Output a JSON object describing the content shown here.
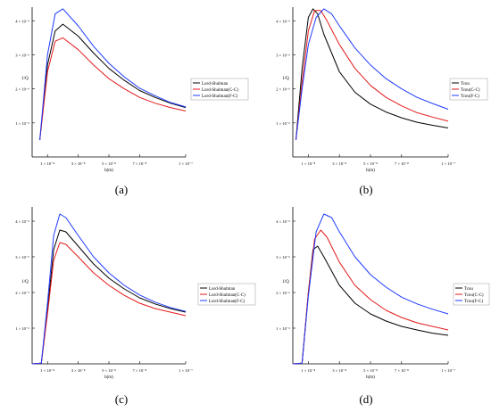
{
  "chart_data": [
    {
      "type": "line",
      "panel_label": "(a)",
      "ylabel": "1/Q",
      "xlabel": "h(m)",
      "x_tick_labels": [
        "1 × 10⁻⁸",
        "3 × 10⁻⁸",
        "5 × 10⁻⁸",
        "7 × 10⁻⁸",
        "1 × 10⁻⁷"
      ],
      "x_ticks": [
        1e-08,
        3e-08,
        5e-08,
        7e-08,
        1e-07
      ],
      "y_tick_labels": [
        "1 × 10⁻⁶",
        "2 × 10⁻⁶",
        "3 × 10⁻⁶",
        "4 × 10⁻⁶"
      ],
      "y_ticks": [
        1e-06,
        2e-06,
        3e-06,
        4e-06
      ],
      "xlim": [
        0,
        1e-07
      ],
      "ylim": [
        0,
        4.4e-06
      ],
      "grid": false,
      "legend_position": "right",
      "series": [
        {
          "name": "Lord-Shulman",
          "color": "#000000",
          "x": [
            5e-09,
            1e-08,
            1.5e-08,
            2e-08,
            3e-08,
            4e-08,
            5e-08,
            6e-08,
            7e-08,
            8e-08,
            9e-08,
            1e-07
          ],
          "y": [
            5e-07,
            2.7e-06,
            3.7e-06,
            3.9e-06,
            3.55e-06,
            3.05e-06,
            2.6e-06,
            2.25e-06,
            1.95e-06,
            1.75e-06,
            1.58e-06,
            1.45e-06
          ]
        },
        {
          "name": "Lord-Shulman(C-C)",
          "color": "#e31a1c",
          "x": [
            5e-09,
            1e-08,
            1.5e-08,
            2e-08,
            3e-08,
            4e-08,
            5e-08,
            6e-08,
            7e-08,
            8e-08,
            9e-08,
            1e-07
          ],
          "y": [
            5e-07,
            2.5e-06,
            3.4e-06,
            3.5e-06,
            3.15e-06,
            2.7e-06,
            2.3e-06,
            2e-06,
            1.75e-06,
            1.58e-06,
            1.45e-06,
            1.35e-06
          ]
        },
        {
          "name": "Lord-Shulman(F-C)",
          "color": "#1f3bff",
          "x": [
            5e-09,
            1e-08,
            1.5e-08,
            2e-08,
            3e-08,
            4e-08,
            5e-08,
            6e-08,
            7e-08,
            8e-08,
            9e-08,
            1e-07
          ],
          "y": [
            5e-07,
            3e-06,
            4.2e-06,
            4.35e-06,
            3.85e-06,
            3.25e-06,
            2.75e-06,
            2.35e-06,
            2.02e-06,
            1.8e-06,
            1.6e-06,
            1.47e-06
          ]
        }
      ]
    },
    {
      "type": "line",
      "panel_label": "(b)",
      "ylabel": "1/Q",
      "xlabel": "h(m)",
      "x_tick_labels": [
        "1 × 10⁻⁸",
        "3 × 10⁻⁸",
        "5 × 10⁻⁸",
        "7 × 10⁻⁸",
        "1 × 10⁻⁷"
      ],
      "x_ticks": [
        1e-08,
        3e-08,
        5e-08,
        7e-08,
        1e-07
      ],
      "y_tick_labels": [
        "1 × 10⁻⁶",
        "2 × 10⁻⁶",
        "3 × 10⁻⁶",
        "4 × 10⁻⁶"
      ],
      "y_ticks": [
        1e-06,
        2e-06,
        3e-06,
        4e-06
      ],
      "xlim": [
        0,
        1e-07
      ],
      "ylim": [
        0,
        4.4e-06
      ],
      "grid": false,
      "legend_position": "right",
      "series": [
        {
          "name": "Tcou",
          "color": "#000000",
          "x": [
            2e-09,
            6e-09,
            1e-08,
            1.3e-08,
            1.6e-08,
            2e-08,
            3e-08,
            4e-08,
            5e-08,
            6e-08,
            7e-08,
            8e-08,
            9e-08,
            1e-07
          ],
          "y": [
            5e-07,
            2.6e-06,
            4.1e-06,
            4.35e-06,
            4.2e-06,
            3.6e-06,
            2.5e-06,
            1.9e-06,
            1.55e-06,
            1.32e-06,
            1.15e-06,
            1.02e-06,
            9.3e-07,
            8.5e-07
          ]
        },
        {
          "name": "Tcou(C-C)",
          "color": "#e31a1c",
          "x": [
            2e-09,
            6e-09,
            1e-08,
            1.4e-08,
            1.8e-08,
            2.2e-08,
            3e-08,
            4e-08,
            5e-08,
            6e-08,
            7e-08,
            8e-08,
            9e-08,
            1e-07
          ],
          "y": [
            5e-07,
            2.2e-06,
            3.7e-06,
            4.3e-06,
            4.3e-06,
            4e-06,
            3.3e-06,
            2.6e-06,
            2.1e-06,
            1.75e-06,
            1.5e-06,
            1.3e-06,
            1.17e-06,
            1.05e-06
          ]
        },
        {
          "name": "Tcou(F-C)",
          "color": "#1f3bff",
          "x": [
            2e-09,
            6e-09,
            1e-08,
            1.5e-08,
            2e-08,
            2.5e-08,
            3e-08,
            4e-08,
            5e-08,
            6e-08,
            7e-08,
            8e-08,
            9e-08,
            1e-07
          ],
          "y": [
            5e-07,
            2e-06,
            3.3e-06,
            4.1e-06,
            4.35e-06,
            4.2e-06,
            3.85e-06,
            3.2e-06,
            2.7e-06,
            2.3e-06,
            2e-06,
            1.75e-06,
            1.57e-06,
            1.4e-06
          ]
        }
      ]
    },
    {
      "type": "line",
      "panel_label": "(c)",
      "ylabel": "1/Q",
      "xlabel": "h(m)",
      "x_tick_labels": [
        "1 × 10⁻⁸",
        "3 × 10⁻⁸",
        "5 × 10⁻⁸",
        "7 × 10⁻⁸",
        "1 × 10⁻⁷"
      ],
      "x_ticks": [
        1e-08,
        3e-08,
        5e-08,
        7e-08,
        1e-07
      ],
      "y_tick_labels": [
        "1 × 10⁻⁶",
        "2 × 10⁻⁶",
        "3 × 10⁻⁶",
        "4 × 10⁻⁶"
      ],
      "y_ticks": [
        1e-06,
        2e-06,
        3e-06,
        4e-06
      ],
      "xlim": [
        0,
        1e-07
      ],
      "ylim": [
        0,
        4.4e-06
      ],
      "grid": false,
      "legend_position": "right",
      "series": [
        {
          "name": "Lord-Shulman",
          "color": "#000000",
          "x": [
            0,
            6e-09,
            1e-08,
            1.4e-08,
            1.8e-08,
            2.2e-08,
            3e-08,
            4e-08,
            5e-08,
            6e-08,
            7e-08,
            8e-08,
            9e-08,
            1e-07
          ],
          "y": [
            0,
            2e-08,
            1.5e-06,
            3.2e-06,
            3.75e-06,
            3.7e-06,
            3.3e-06,
            2.8e-06,
            2.4e-06,
            2.1e-06,
            1.85e-06,
            1.68e-06,
            1.55e-06,
            1.45e-06
          ]
        },
        {
          "name": "Lord-Shulman(C-C)",
          "color": "#e31a1c",
          "x": [
            0,
            6e-09,
            1e-08,
            1.4e-08,
            1.8e-08,
            2.2e-08,
            3e-08,
            4e-08,
            5e-08,
            6e-08,
            7e-08,
            8e-08,
            9e-08,
            1e-07
          ],
          "y": [
            0,
            2e-08,
            1.4e-06,
            2.9e-06,
            3.4e-06,
            3.35e-06,
            3e-06,
            2.55e-06,
            2.2e-06,
            1.92e-06,
            1.7e-06,
            1.55e-06,
            1.45e-06,
            1.35e-06
          ]
        },
        {
          "name": "Lord-Shulman(F-C)",
          "color": "#1f3bff",
          "x": [
            0,
            6e-09,
            1e-08,
            1.4e-08,
            1.8e-08,
            2.2e-08,
            3e-08,
            4e-08,
            5e-08,
            6e-08,
            7e-08,
            8e-08,
            9e-08,
            1e-07
          ],
          "y": [
            0,
            2e-08,
            1.7e-06,
            3.6e-06,
            4.2e-06,
            4.1e-06,
            3.6e-06,
            3e-06,
            2.55e-06,
            2.2e-06,
            1.93e-06,
            1.73e-06,
            1.58e-06,
            1.47e-06
          ]
        }
      ]
    },
    {
      "type": "line",
      "panel_label": "(d)",
      "ylabel": "1/Q",
      "xlabel": "h(m)",
      "x_tick_labels": [
        "1 × 10⁻⁸",
        "3 × 10⁻⁸",
        "5 × 10⁻⁸",
        "7 × 10⁻⁸",
        "1 × 10⁻⁷"
      ],
      "x_ticks": [
        1e-08,
        3e-08,
        5e-08,
        7e-08,
        1e-07
      ],
      "y_tick_labels": [
        "1 × 10⁻⁶",
        "2 × 10⁻⁶",
        "3 × 10⁻⁶",
        "4 × 10⁻⁶"
      ],
      "y_ticks": [
        1e-06,
        2e-06,
        3e-06,
        4e-06
      ],
      "xlim": [
        0,
        1e-07
      ],
      "ylim": [
        0,
        4.4e-06
      ],
      "grid": false,
      "legend_position": "right",
      "series": [
        {
          "name": "Tcou",
          "color": "#000000",
          "x": [
            0,
            6e-09,
            1e-08,
            1.3e-08,
            1.6e-08,
            2e-08,
            3e-08,
            4e-08,
            5e-08,
            6e-08,
            7e-08,
            8e-08,
            9e-08,
            1e-07
          ],
          "y": [
            0,
            2e-08,
            2e-06,
            3.2e-06,
            3.3e-06,
            3e-06,
            2.2e-06,
            1.7e-06,
            1.4e-06,
            1.2e-06,
            1.05e-06,
            9.5e-07,
            8.6e-07,
            8e-07
          ]
        },
        {
          "name": "Tcou(C-C)",
          "color": "#e31a1c",
          "x": [
            0,
            6e-09,
            1e-08,
            1.4e-08,
            1.8e-08,
            2.2e-08,
            3e-08,
            4e-08,
            5e-08,
            6e-08,
            7e-08,
            8e-08,
            9e-08,
            1e-07
          ],
          "y": [
            0,
            2e-08,
            2e-06,
            3.5e-06,
            3.75e-06,
            3.55e-06,
            2.85e-06,
            2.2e-06,
            1.8e-06,
            1.5e-06,
            1.3e-06,
            1.15e-06,
            1.05e-06,
            9.5e-07
          ]
        },
        {
          "name": "Tcou(F-C)",
          "color": "#1f3bff",
          "x": [
            0,
            6e-09,
            1e-08,
            1.5e-08,
            2e-08,
            2.5e-08,
            3e-08,
            4e-08,
            5e-08,
            6e-08,
            7e-08,
            8e-08,
            9e-08,
            1e-07
          ],
          "y": [
            0,
            2e-08,
            1.9e-06,
            3.7e-06,
            4.2e-06,
            4.1e-06,
            3.7e-06,
            3e-06,
            2.5e-06,
            2.15e-06,
            1.87e-06,
            1.68e-06,
            1.53e-06,
            1.4e-06
          ]
        }
      ]
    }
  ]
}
